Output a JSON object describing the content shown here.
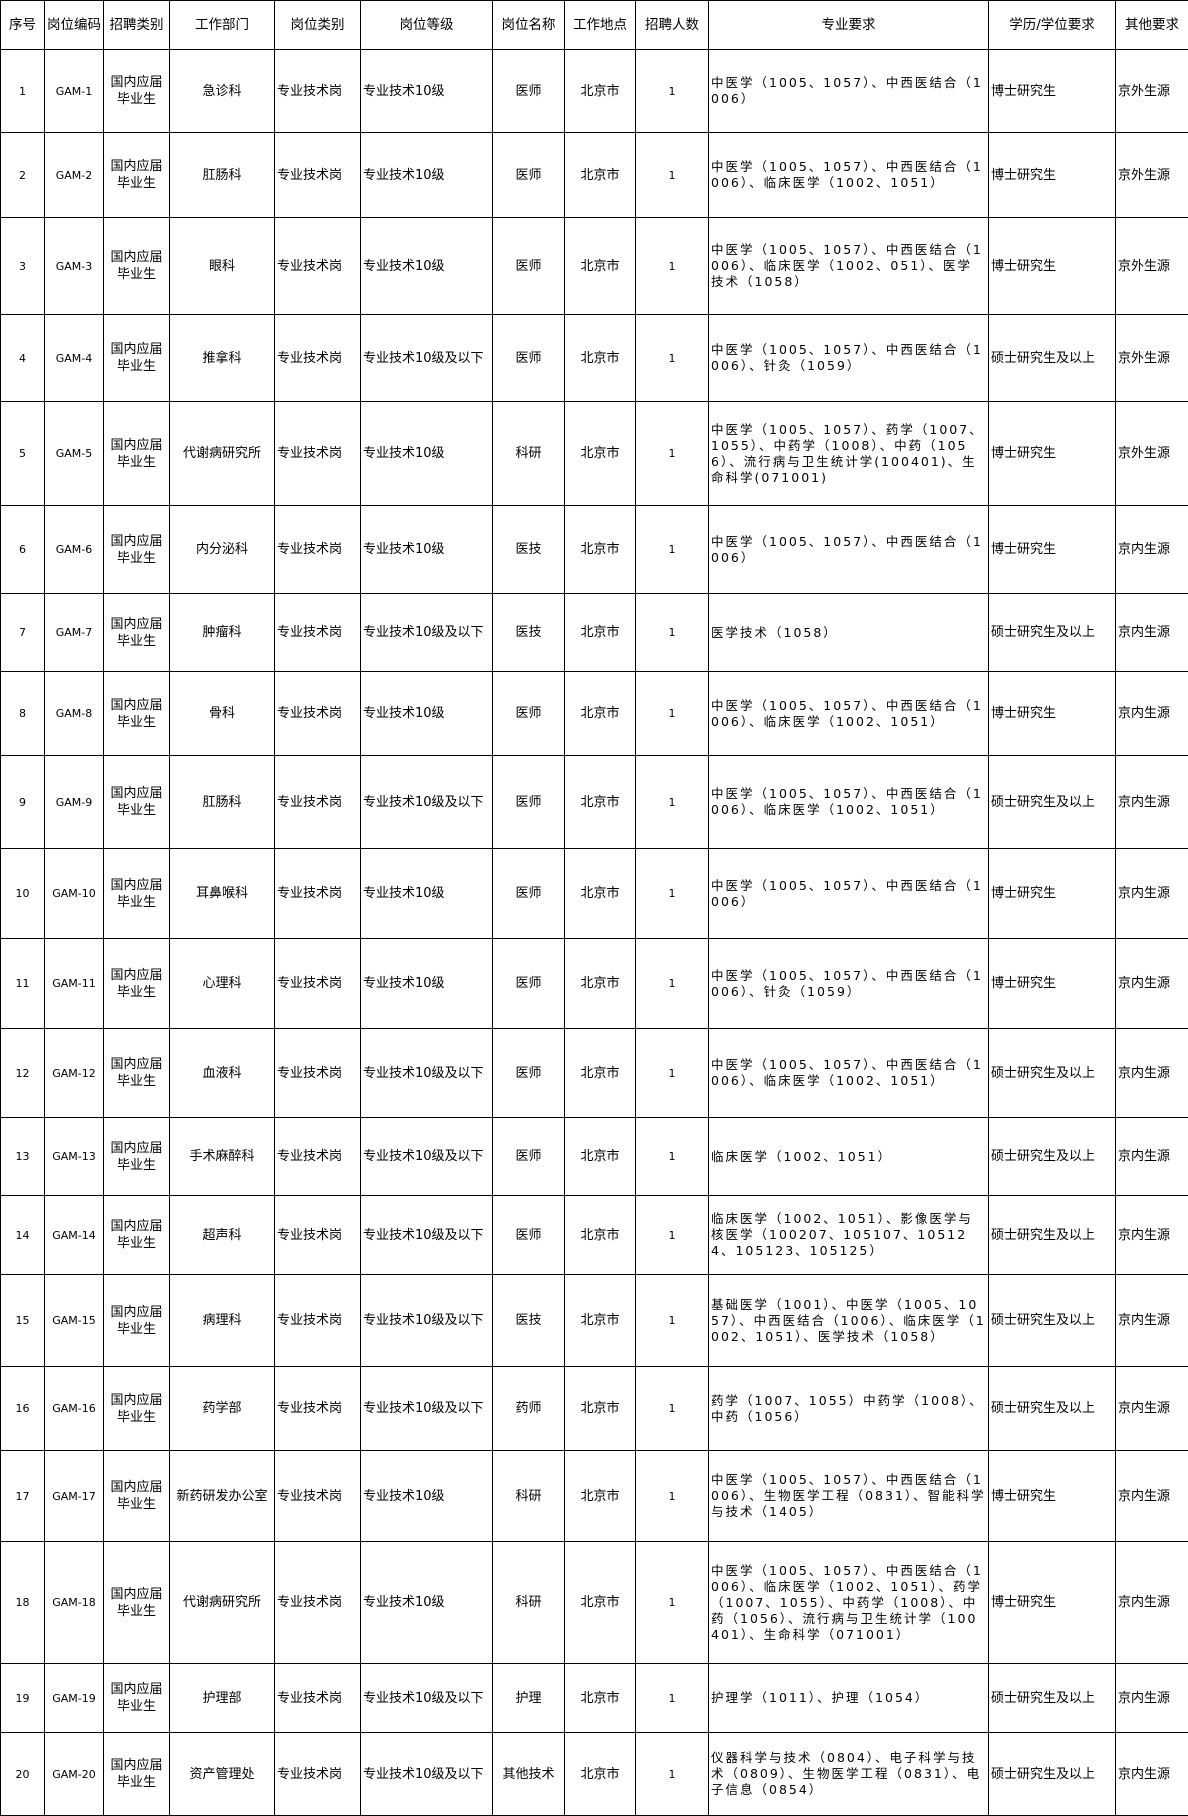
{
  "headers": [
    "序号",
    "岗位编码",
    "招聘类别",
    "工作部门",
    "岗位类别",
    "岗位等级",
    "岗位名称",
    "工作地点",
    "招聘人数",
    "专业要求",
    "学历/学位要求",
    "其他要求"
  ],
  "rows": [
    [
      "1",
      "GAM-1",
      "国内应届毕业生",
      "急诊科",
      "专业技术岗",
      "专业技术10级",
      "医师",
      "北京市",
      "1",
      "中医学（1005、1057）、中西医结合（1006）",
      "博士研究生",
      "京外生源"
    ],
    [
      "2",
      "GAM-2",
      "国内应届毕业生",
      "肛肠科",
      "专业技术岗",
      "专业技术10级",
      "医师",
      "北京市",
      "1",
      "中医学（1005、1057）、中西医结合（1006）、临床医学（1002、1051）",
      "博士研究生",
      "京外生源"
    ],
    [
      "3",
      "GAM-3",
      "国内应届毕业生",
      "眼科",
      "专业技术岗",
      "专业技术10级",
      "医师",
      "北京市",
      "1",
      "中医学（1005、1057）、中西医结合（1006）、临床医学（1002、051）、医学技术（1058）",
      "博士研究生",
      "京外生源"
    ],
    [
      "4",
      "GAM-4",
      "国内应届毕业生",
      "推拿科",
      "专业技术岗",
      "专业技术10级及以下",
      "医师",
      "北京市",
      "1",
      "中医学（1005、1057）、中西医结合（1006）、针灸（1059）",
      "硕士研究生及以上",
      "京外生源"
    ],
    [
      "5",
      "GAM-5",
      "国内应届毕业生",
      "代谢病研究所",
      "专业技术岗",
      "专业技术10级",
      "科研",
      "北京市",
      "1",
      "中医学（1005、1057）、药学（1007、1055）、中药学（1008）、中药（1056）、流行病与卫生统计学(100401)、生命科学(071001)",
      "博士研究生",
      "京外生源"
    ],
    [
      "6",
      "GAM-6",
      "国内应届毕业生",
      "内分泌科",
      "专业技术岗",
      "专业技术10级",
      "医技",
      "北京市",
      "1",
      "中医学（1005、1057）、中西医结合（1006）",
      "博士研究生",
      "京内生源"
    ],
    [
      "7",
      "GAM-7",
      "国内应届毕业生",
      "肿瘤科",
      "专业技术岗",
      "专业技术10级及以下",
      "医技",
      "北京市",
      "1",
      "医学技术（1058）",
      "硕士研究生及以上",
      "京内生源"
    ],
    [
      "8",
      "GAM-8",
      "国内应届毕业生",
      "骨科",
      "专业技术岗",
      "专业技术10级",
      "医师",
      "北京市",
      "1",
      "中医学（1005、1057）、中西医结合（1006）、临床医学（1002、1051）",
      "博士研究生",
      "京内生源"
    ],
    [
      "9",
      "GAM-9",
      "国内应届毕业生",
      "肛肠科",
      "专业技术岗",
      "专业技术10级及以下",
      "医师",
      "北京市",
      "1",
      "中医学（1005、1057）、中西医结合（1006）、临床医学（1002、1051）",
      "硕士研究生及以上",
      "京内生源"
    ],
    [
      "10",
      "GAM-10",
      "国内应届毕业生",
      "耳鼻喉科",
      "专业技术岗",
      "专业技术10级",
      "医师",
      "北京市",
      "1",
      "中医学（1005、1057）、中西医结合（1006）",
      "博士研究生",
      "京内生源"
    ],
    [
      "11",
      "GAM-11",
      "国内应届毕业生",
      "心理科",
      "专业技术岗",
      "专业技术10级",
      "医师",
      "北京市",
      "1",
      "中医学（1005、1057）、中西医结合（1006）、针灸（1059）",
      "博士研究生",
      "京内生源"
    ],
    [
      "12",
      "GAM-12",
      "国内应届毕业生",
      "血液科",
      "专业技术岗",
      "专业技术10级及以下",
      "医师",
      "北京市",
      "1",
      "中医学（1005、1057）、中西医结合（1006）、临床医学（1002、1051）",
      "硕士研究生及以上",
      "京内生源"
    ],
    [
      "13",
      "GAM-13",
      "国内应届毕业生",
      "手术麻醉科",
      "专业技术岗",
      "专业技术10级及以下",
      "医师",
      "北京市",
      "1",
      "临床医学（1002、1051）",
      "硕士研究生及以上",
      "京内生源"
    ],
    [
      "14",
      "GAM-14",
      "国内应届毕业生",
      "超声科",
      "专业技术岗",
      "专业技术10级及以下",
      "医师",
      "北京市",
      "1",
      "临床医学（1002、1051）、影像医学与核医学（100207、105107、105124、105123、105125）",
      "硕士研究生及以上",
      "京内生源"
    ],
    [
      "15",
      "GAM-15",
      "国内应届毕业生",
      "病理科",
      "专业技术岗",
      "专业技术10级及以下",
      "医技",
      "北京市",
      "1",
      "基础医学（1001）、中医学（1005、1057）、中西医结合（1006）、临床医学（1002、1051）、医学技术（1058）",
      "硕士研究生及以上",
      "京内生源"
    ],
    [
      "16",
      "GAM-16",
      "国内应届毕业生",
      "药学部",
      "专业技术岗",
      "专业技术10级及以下",
      "药师",
      "北京市",
      "1",
      "药学（1007、1055）中药学（1008）、中药（1056）",
      "硕士研究生及以上",
      "京内生源"
    ],
    [
      "17",
      "GAM-17",
      "国内应届毕业生",
      "新药研发办公室",
      "专业技术岗",
      "专业技术10级",
      "科研",
      "北京市",
      "1",
      "中医学（1005、1057）、中西医结合（1006）、生物医学工程（0831）、智能科学与技术（1405）",
      "博士研究生",
      "京内生源"
    ],
    [
      "18",
      "GAM-18",
      "国内应届毕业生",
      "代谢病研究所",
      "专业技术岗",
      "专业技术10级",
      "科研",
      "北京市",
      "1",
      "中医学（1005、1057）、中西医结合（1006）、临床医学（1002、1051）、药学（1007、1055）、中药学（1008）、中药（1056）、流行病与卫生统计学（100401）、生命科学（071001）",
      "博士研究生",
      "京内生源"
    ],
    [
      "19",
      "GAM-19",
      "国内应届毕业生",
      "护理部",
      "专业技术岗",
      "专业技术10级及以下",
      "护理",
      "北京市",
      "1",
      "护理学（1011）、护理（1054）",
      "硕士研究生及以上",
      "京内生源"
    ],
    [
      "20",
      "GAM-20",
      "国内应届毕业生",
      "资产管理处",
      "专业技术岗",
      "专业技术10级及以下",
      "其他技术",
      "北京市",
      "1",
      "仪器科学与技术（0804）、电子科学与技术（0809）、生物医学工程（0831）、电子信息（0854）",
      "硕士研究生及以上",
      "京内生源"
    ]
  ]
}
